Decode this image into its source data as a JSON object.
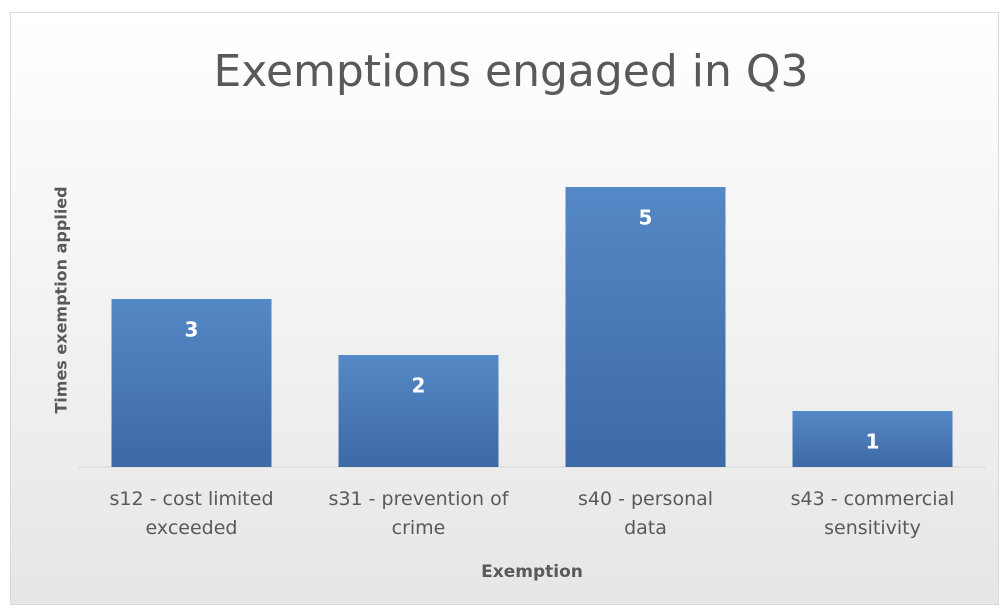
{
  "chart_data": {
    "type": "bar",
    "title": "Exemptions engaged in Q3",
    "x_label": "Exemption",
    "y_label": "Times exemption applied",
    "categories": [
      "s12 - cost limited exceeded",
      "s31 - prevention of crime",
      "s40 - personal data",
      "s43 - commercial sensitivity"
    ],
    "values": [
      3,
      2,
      5,
      1
    ],
    "color": "#4a7bbd",
    "ylim": [
      0,
      6
    ],
    "grid": false
  }
}
